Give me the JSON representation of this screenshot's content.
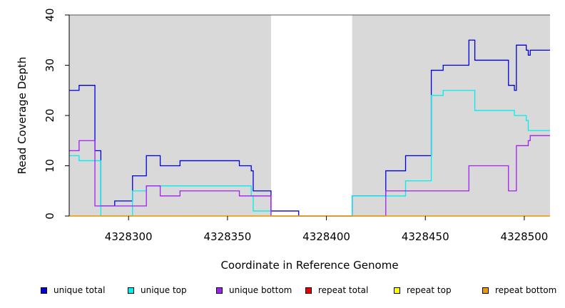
{
  "chart_data": {
    "type": "line",
    "title": "",
    "xlabel": "Coordinate in Reference Genome",
    "ylabel": "Read Coverage Depth",
    "xlim": [
      4328270,
      4328513
    ],
    "ylim": [
      0,
      40
    ],
    "x_ticks": [
      4328300,
      4328350,
      4328400,
      4328450,
      4328500
    ],
    "y_ticks": [
      0,
      10,
      20,
      30,
      40
    ],
    "shaded_regions": [
      [
        4328270,
        4328372
      ],
      [
        4328413,
        4328513
      ]
    ],
    "legend_position": "bottom",
    "series": [
      {
        "name": "unique total",
        "color": "#0000dd",
        "points": [
          [
            4328270,
            25
          ],
          [
            4328275,
            25
          ],
          [
            4328275,
            26
          ],
          [
            4328283,
            26
          ],
          [
            4328283,
            13
          ],
          [
            4328286,
            13
          ],
          [
            4328286,
            2
          ],
          [
            4328293,
            2
          ],
          [
            4328293,
            3
          ],
          [
            4328302,
            3
          ],
          [
            4328302,
            8
          ],
          [
            4328309,
            8
          ],
          [
            4328309,
            12
          ],
          [
            4328316,
            12
          ],
          [
            4328316,
            10
          ],
          [
            4328326,
            10
          ],
          [
            4328326,
            11
          ],
          [
            4328356,
            11
          ],
          [
            4328356,
            10
          ],
          [
            4328362,
            10
          ],
          [
            4328362,
            9
          ],
          [
            4328363,
            9
          ],
          [
            4328363,
            5
          ],
          [
            4328372,
            5
          ],
          [
            4328372,
            1
          ],
          [
            4328386,
            1
          ],
          [
            4328386,
            0
          ],
          [
            4328413,
            0
          ],
          [
            4328413,
            4
          ],
          [
            4328430,
            4
          ],
          [
            4328430,
            9
          ],
          [
            4328440,
            9
          ],
          [
            4328440,
            12
          ],
          [
            4328453,
            12
          ],
          [
            4328453,
            29
          ],
          [
            4328459,
            29
          ],
          [
            4328459,
            30
          ],
          [
            4328472,
            30
          ],
          [
            4328472,
            35
          ],
          [
            4328475,
            35
          ],
          [
            4328475,
            31
          ],
          [
            4328492,
            31
          ],
          [
            4328492,
            26
          ],
          [
            4328495,
            26
          ],
          [
            4328495,
            25
          ],
          [
            4328496,
            25
          ],
          [
            4328496,
            34
          ],
          [
            4328501,
            34
          ],
          [
            4328501,
            33
          ],
          [
            4328502,
            33
          ],
          [
            4328502,
            32
          ],
          [
            4328503,
            32
          ],
          [
            4328503,
            33
          ],
          [
            4328513,
            33
          ]
        ]
      },
      {
        "name": "unique top",
        "color": "#00eeee",
        "points": [
          [
            4328270,
            12
          ],
          [
            4328275,
            12
          ],
          [
            4328275,
            11
          ],
          [
            4328286,
            11
          ],
          [
            4328286,
            0
          ],
          [
            4328302,
            0
          ],
          [
            4328302,
            5
          ],
          [
            4328309,
            5
          ],
          [
            4328309,
            6
          ],
          [
            4328362,
            6
          ],
          [
            4328362,
            4
          ],
          [
            4328363,
            4
          ],
          [
            4328363,
            1
          ],
          [
            4328372,
            1
          ],
          [
            4328372,
            0
          ],
          [
            4328413,
            0
          ],
          [
            4328413,
            4
          ],
          [
            4328440,
            4
          ],
          [
            4328440,
            7
          ],
          [
            4328453,
            7
          ],
          [
            4328453,
            24
          ],
          [
            4328459,
            24
          ],
          [
            4328459,
            25
          ],
          [
            4328475,
            25
          ],
          [
            4328475,
            21
          ],
          [
            4328495,
            21
          ],
          [
            4328495,
            20
          ],
          [
            4328501,
            20
          ],
          [
            4328501,
            19
          ],
          [
            4328502,
            19
          ],
          [
            4328502,
            17
          ],
          [
            4328513,
            17
          ]
        ]
      },
      {
        "name": "unique bottom",
        "color": "#a020f0",
        "points": [
          [
            4328270,
            13
          ],
          [
            4328275,
            13
          ],
          [
            4328275,
            15
          ],
          [
            4328283,
            15
          ],
          [
            4328283,
            2
          ],
          [
            4328309,
            2
          ],
          [
            4328309,
            6
          ],
          [
            4328316,
            6
          ],
          [
            4328316,
            4
          ],
          [
            4328326,
            4
          ],
          [
            4328326,
            5
          ],
          [
            4328356,
            5
          ],
          [
            4328356,
            4
          ],
          [
            4328372,
            4
          ],
          [
            4328372,
            0
          ],
          [
            4328430,
            0
          ],
          [
            4328430,
            5
          ],
          [
            4328472,
            5
          ],
          [
            4328472,
            10
          ],
          [
            4328492,
            10
          ],
          [
            4328492,
            5
          ],
          [
            4328496,
            5
          ],
          [
            4328496,
            14
          ],
          [
            4328502,
            14
          ],
          [
            4328502,
            15
          ],
          [
            4328503,
            15
          ],
          [
            4328503,
            16
          ],
          [
            4328513,
            16
          ]
        ]
      },
      {
        "name": "repeat total",
        "color": "#ee0000",
        "points": [
          [
            4328270,
            0
          ],
          [
            4328513,
            0
          ]
        ]
      },
      {
        "name": "repeat top",
        "color": "#ffff00",
        "points": [
          [
            4328270,
            0
          ],
          [
            4328513,
            0
          ]
        ]
      },
      {
        "name": "repeat bottom",
        "color": "#ee9a00",
        "points": [
          [
            4328270,
            0
          ],
          [
            4328513,
            0
          ]
        ]
      }
    ]
  },
  "legend": {
    "items": [
      {
        "label": "unique total",
        "color": "#0000dd"
      },
      {
        "label": "unique top",
        "color": "#00eeee"
      },
      {
        "label": "unique bottom",
        "color": "#a020f0"
      },
      {
        "label": "repeat total",
        "color": "#ee0000"
      },
      {
        "label": "repeat top",
        "color": "#ffff00"
      },
      {
        "label": "repeat bottom",
        "color": "#ee9a00"
      }
    ]
  }
}
